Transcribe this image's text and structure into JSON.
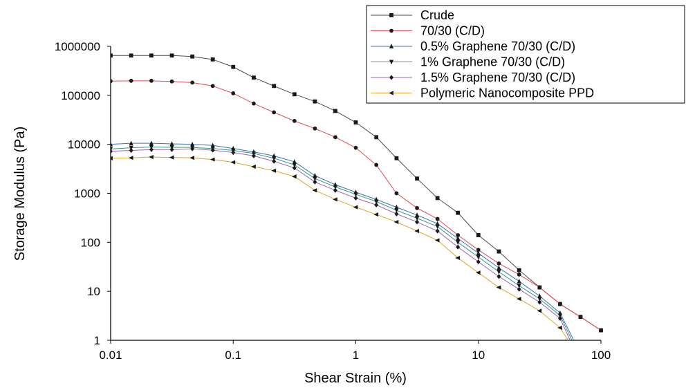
{
  "chart_data": {
    "type": "line",
    "title": "",
    "xlabel": "Shear Strain (%)",
    "ylabel": "Storage Modulus (Pa)",
    "xscale": "log",
    "yscale": "log",
    "xlim": [
      0.01,
      100
    ],
    "ylim": [
      1,
      1000000
    ],
    "xticks": [
      0.01,
      0.1,
      1,
      10,
      100
    ],
    "xtick_labels": [
      "0.01",
      "0.1",
      "1",
      "10",
      "100"
    ],
    "yticks": [
      1,
      10,
      100,
      1000,
      10000,
      100000,
      1000000
    ],
    "ytick_labels": [
      "1",
      "10",
      "100",
      "1000",
      "10000",
      "100000",
      "1000000"
    ],
    "grid": false,
    "legend_position": "top-right",
    "series": [
      {
        "name": "Crude",
        "color": "#4a4a4a",
        "marker": "square",
        "x": [
          0.01,
          0.0147,
          0.0215,
          0.0316,
          0.0464,
          0.0681,
          0.1,
          0.147,
          0.215,
          0.316,
          0.464,
          0.681,
          1.0,
          1.47,
          2.15,
          3.16,
          4.64,
          6.81,
          10.0,
          14.7,
          21.5,
          31.6,
          46.4,
          68.1,
          100
        ],
        "y": [
          650000,
          650000,
          650000,
          650000,
          620000,
          540000,
          380000,
          230000,
          155000,
          105000,
          75000,
          48000,
          28000,
          14000,
          5200,
          2000,
          800,
          400,
          140,
          65,
          27,
          12,
          5.5,
          3,
          1.6
        ]
      },
      {
        "name": "70/30 (C/D)",
        "color": "#e8474c",
        "marker": "circle",
        "x": [
          0.01,
          0.0147,
          0.0215,
          0.0316,
          0.0464,
          0.0681,
          0.1,
          0.147,
          0.215,
          0.316,
          0.464,
          0.681,
          1.0,
          1.47,
          2.15,
          3.16,
          4.64,
          6.81,
          10.0,
          14.7,
          21.5,
          31.6,
          46.4,
          68.1,
          100
        ],
        "y": [
          195000,
          198000,
          198000,
          192000,
          182000,
          155000,
          110000,
          68000,
          45000,
          30000,
          21000,
          14000,
          8500,
          3800,
          1000,
          500,
          300,
          140,
          70,
          37,
          22,
          12,
          5.5,
          3,
          1.6
        ]
      },
      {
        "name": "0.5% Graphene 70/30 (C/D)",
        "color": "#3d6fb4",
        "marker": "triangle-up",
        "x": [
          0.01,
          0.0147,
          0.0215,
          0.0316,
          0.0464,
          0.0681,
          0.1,
          0.147,
          0.215,
          0.316,
          0.464,
          0.681,
          1.0,
          1.47,
          2.15,
          3.16,
          4.64,
          6.81,
          10.0,
          14.7,
          21.5,
          31.6,
          46.4,
          60
        ],
        "y": [
          10000,
          10500,
          10500,
          10200,
          10000,
          9500,
          8200,
          7000,
          5800,
          4400,
          2300,
          1500,
          1050,
          750,
          520,
          360,
          240,
          120,
          60,
          30,
          16,
          8,
          3.6,
          1
        ]
      },
      {
        "name": "1% Graphene 70/30 (C/D)",
        "color": "#2e9c7a",
        "marker": "triangle-down",
        "x": [
          0.01,
          0.0147,
          0.0215,
          0.0316,
          0.0464,
          0.0681,
          0.1,
          0.147,
          0.215,
          0.316,
          0.464,
          0.681,
          1.0,
          1.47,
          2.15,
          3.16,
          4.64,
          6.81,
          10.0,
          14.7,
          21.5,
          31.6,
          46.4,
          58
        ],
        "y": [
          8000,
          8500,
          8800,
          8700,
          8600,
          8200,
          7500,
          6500,
          5200,
          3800,
          2000,
          1350,
          950,
          680,
          450,
          310,
          210,
          100,
          50,
          25,
          13,
          7,
          3.2,
          1
        ]
      },
      {
        "name": "1.5% Graphene 70/30 (C/D)",
        "color": "#a35ec0",
        "marker": "diamond",
        "x": [
          0.01,
          0.0147,
          0.0215,
          0.0316,
          0.0464,
          0.0681,
          0.1,
          0.147,
          0.215,
          0.316,
          0.464,
          0.681,
          1.0,
          1.47,
          2.15,
          3.16,
          4.64,
          6.81,
          10.0,
          14.7,
          21.5,
          31.6,
          46.4,
          56
        ],
        "y": [
          7200,
          7500,
          7800,
          7800,
          8100,
          7600,
          6800,
          5800,
          4500,
          3300,
          1700,
          1150,
          800,
          580,
          380,
          260,
          170,
          80,
          40,
          20,
          11,
          6,
          2.8,
          1
        ]
      },
      {
        "name": "Polymeric Nanocomposite PPD",
        "color": "#e0a32a",
        "marker": "triangle-left",
        "x": [
          0.01,
          0.0147,
          0.0215,
          0.0316,
          0.0464,
          0.0681,
          0.1,
          0.147,
          0.215,
          0.316,
          0.464,
          0.681,
          1.0,
          1.47,
          2.15,
          3.16,
          4.64,
          6.81,
          10.0,
          14.7,
          21.5,
          31.6,
          46.4,
          54
        ],
        "y": [
          5200,
          5300,
          5500,
          5400,
          5300,
          4900,
          4300,
          3500,
          2900,
          2200,
          1150,
          750,
          520,
          370,
          260,
          170,
          110,
          48,
          24,
          12,
          7,
          4,
          1.8,
          1
        ]
      }
    ]
  }
}
